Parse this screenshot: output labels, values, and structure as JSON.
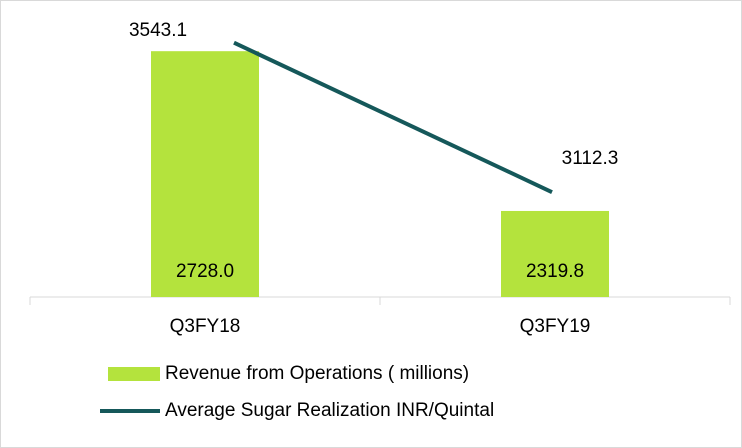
{
  "chart_data": {
    "type": "combo",
    "categories": [
      "Q3FY18",
      "Q3FY19"
    ],
    "series": [
      {
        "name": "Revenue from Operations ( millions)",
        "type": "bar",
        "color": "#b4e33d",
        "values": [
          2728.0,
          2319.8
        ],
        "value_labels": [
          "2728.0",
          "2319.8"
        ]
      },
      {
        "name": "Average Sugar Realization INR/Quintal",
        "type": "line",
        "axis": "y2",
        "color": "#15585a",
        "values": [
          3543.1,
          3112.3
        ]
      }
    ],
    "ylim": [
      2100,
      2800
    ],
    "y2lim": [
      2810,
      3600
    ]
  }
}
